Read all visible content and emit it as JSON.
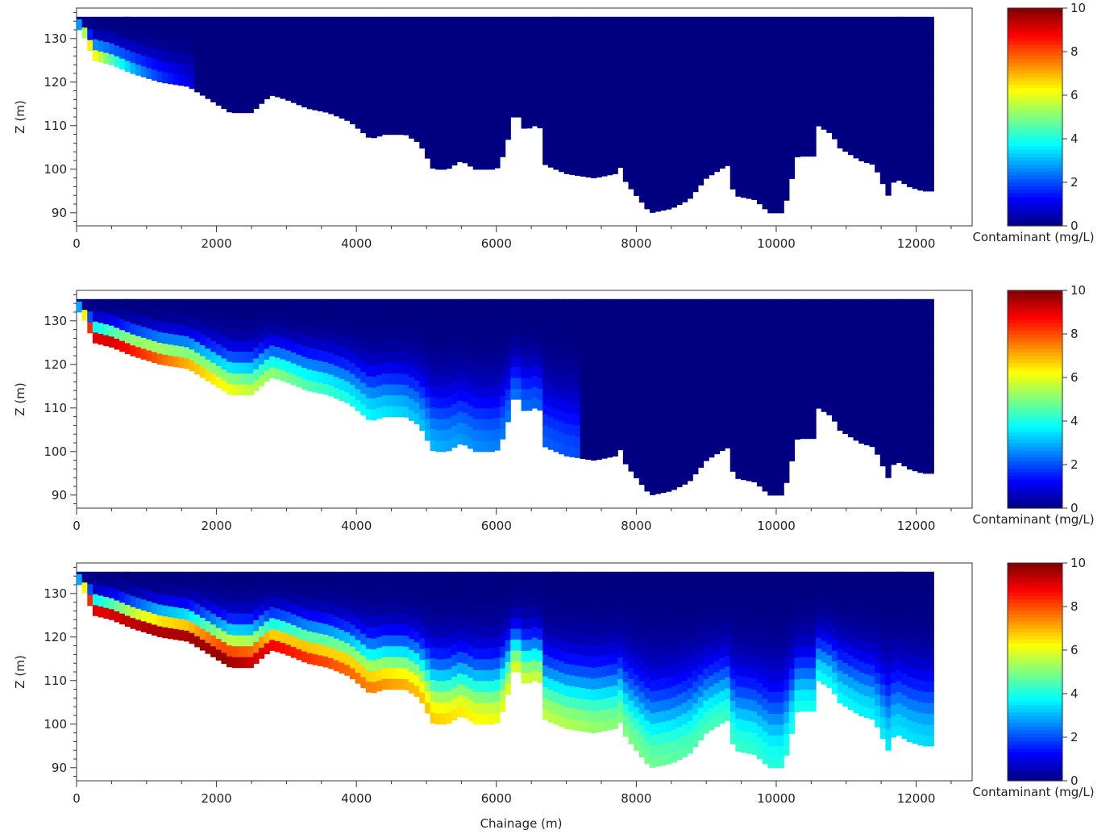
{
  "figure": {
    "x_axis_label": "Chainage (m)",
    "colorbar_label": "Contaminant (mg/L)"
  },
  "chart_data": [
    {
      "type": "heatmap",
      "panel": "top",
      "xlabel": "",
      "ylabel": "Z (m)",
      "xlim": [
        0,
        12800
      ],
      "ylim": [
        87,
        137
      ],
      "x_ticks": [
        0,
        2000,
        4000,
        6000,
        8000,
        10000,
        12000
      ],
      "y_ticks": [
        90,
        100,
        110,
        120,
        130
      ],
      "colorbar": {
        "label": "Contaminant (mg/L)",
        "range": [
          0,
          10
        ],
        "ticks": [
          0,
          2,
          4,
          6,
          8,
          10
        ],
        "colormap": "jet"
      },
      "plume": {
        "max_conc": 10,
        "extent_m": 1700
      },
      "background_conc": 0,
      "mid_fill_conc": 0
    },
    {
      "type": "heatmap",
      "panel": "middle",
      "xlabel": "",
      "ylabel": "Z (m)",
      "xlim": [
        0,
        12800
      ],
      "ylim": [
        87,
        137
      ],
      "x_ticks": [
        0,
        2000,
        4000,
        6000,
        8000,
        10000,
        12000
      ],
      "y_ticks": [
        90,
        100,
        110,
        120,
        130
      ],
      "colorbar": {
        "label": "Contaminant (mg/L)",
        "range": [
          0,
          10
        ],
        "ticks": [
          0,
          2,
          4,
          6,
          8,
          10
        ],
        "colormap": "jet"
      },
      "plume": {
        "max_conc": 10,
        "extent_m": 7200
      },
      "background_conc": 0,
      "mid_fill_conc": 1.5
    },
    {
      "type": "heatmap",
      "panel": "bottom",
      "xlabel": "Chainage (m)",
      "ylabel": "Z (m)",
      "xlim": [
        0,
        12800
      ],
      "ylim": [
        87,
        137
      ],
      "x_ticks": [
        0,
        2000,
        4000,
        6000,
        8000,
        10000,
        12000
      ],
      "y_ticks": [
        90,
        100,
        110,
        120,
        130
      ],
      "colorbar": {
        "label": "Contaminant (mg/L)",
        "range": [
          0,
          10
        ],
        "ticks": [
          0,
          2,
          4,
          6,
          8,
          10
        ],
        "colormap": "jet"
      },
      "plume": {
        "max_conc": 10,
        "extent_m": 12300
      },
      "background_conc": 0,
      "mid_fill_conc": 3.5
    }
  ],
  "section": {
    "bed_profile": [
      [
        0,
        133
      ],
      [
        120,
        130
      ],
      [
        250,
        125
      ],
      [
        500,
        124
      ],
      [
        800,
        122
      ],
      [
        1000,
        121
      ],
      [
        1200,
        120
      ],
      [
        1600,
        119
      ],
      [
        1800,
        117
      ],
      [
        2000,
        115
      ],
      [
        2200,
        113
      ],
      [
        2500,
        113
      ],
      [
        2700,
        116
      ],
      [
        2800,
        117
      ],
      [
        3000,
        116
      ],
      [
        3300,
        114
      ],
      [
        3600,
        113
      ],
      [
        3900,
        111
      ],
      [
        4200,
        107
      ],
      [
        4400,
        108
      ],
      [
        4700,
        108
      ],
      [
        4900,
        106
      ],
      [
        5100,
        100
      ],
      [
        5300,
        100
      ],
      [
        5500,
        102
      ],
      [
        5700,
        100
      ],
      [
        6000,
        100
      ],
      [
        6150,
        105
      ],
      [
        6200,
        112
      ],
      [
        6350,
        112
      ],
      [
        6400,
        109
      ],
      [
        6550,
        110
      ],
      [
        6600,
        112
      ],
      [
        6700,
        101
      ],
      [
        7000,
        99
      ],
      [
        7400,
        98
      ],
      [
        7700,
        99
      ],
      [
        7800,
        101
      ],
      [
        7850,
        97
      ],
      [
        8000,
        94
      ],
      [
        8200,
        90
      ],
      [
        8500,
        91
      ],
      [
        8750,
        93
      ],
      [
        9000,
        98
      ],
      [
        9300,
        101
      ],
      [
        9400,
        94
      ],
      [
        9700,
        93
      ],
      [
        9900,
        90
      ],
      [
        10100,
        90
      ],
      [
        10300,
        103
      ],
      [
        10550,
        103
      ],
      [
        10600,
        110
      ],
      [
        10800,
        108
      ],
      [
        10900,
        105
      ],
      [
        11200,
        102
      ],
      [
        11400,
        101
      ],
      [
        11600,
        94
      ],
      [
        11700,
        98
      ],
      [
        11900,
        96
      ],
      [
        12100,
        95
      ],
      [
        12250,
        95
      ]
    ],
    "surface_z": 135,
    "end_x": 12250
  }
}
